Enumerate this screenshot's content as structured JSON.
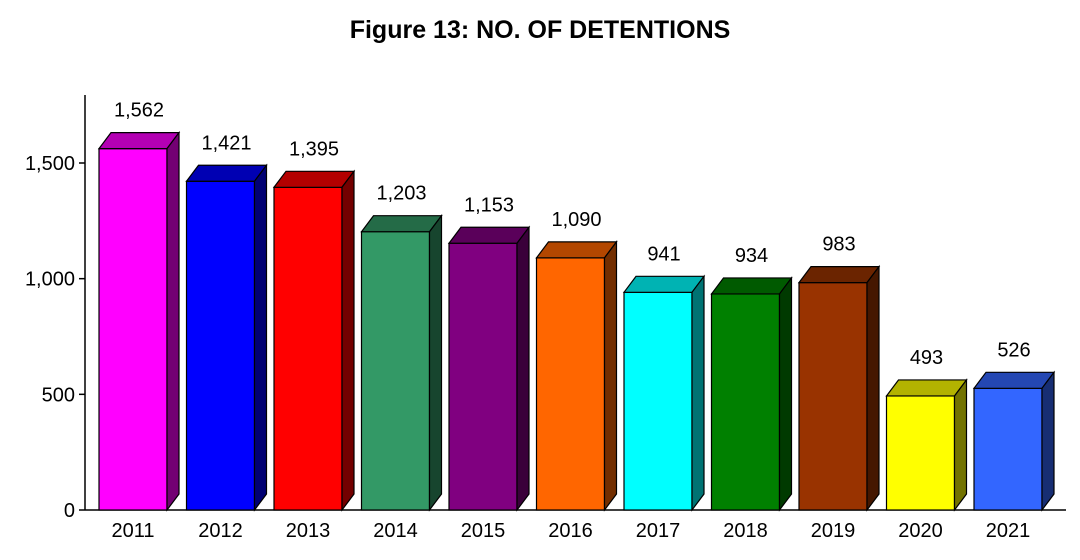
{
  "chart_data": {
    "type": "bar",
    "title": "Figure 13: NO. OF DETENTIONS",
    "xlabel": "",
    "ylabel": "",
    "categories": [
      "2011",
      "2012",
      "2013",
      "2014",
      "2015",
      "2016",
      "2017",
      "2018",
      "2019",
      "2020",
      "2021"
    ],
    "values": [
      1562,
      1421,
      1395,
      1203,
      1153,
      1090,
      941,
      934,
      983,
      493,
      526
    ],
    "value_labels": [
      "1,562",
      "1,421",
      "1,395",
      "1,203",
      "1,153",
      "1,090",
      "941",
      "934",
      "983",
      "493",
      "526"
    ],
    "ylim": [
      0,
      1750
    ],
    "yticks": [
      0,
      500,
      1000,
      1500
    ],
    "ytick_labels": [
      "0",
      "500",
      "1,000",
      "1,500"
    ],
    "grid": false,
    "style": "3d",
    "colors": [
      "#ff00ff",
      "#0000ff",
      "#ff0000",
      "#339966",
      "#800080",
      "#ff6600",
      "#00ffff",
      "#008000",
      "#993300",
      "#ffff00",
      "#3366ff"
    ]
  }
}
